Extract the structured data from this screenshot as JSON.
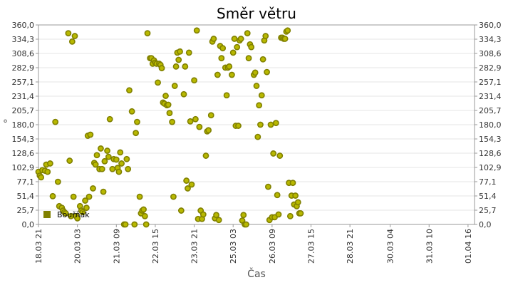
{
  "chart_data": {
    "type": "scatter",
    "title": "Směr větru",
    "xlabel": "Čas",
    "ylabel": "°",
    "ylim": [
      0,
      360
    ],
    "y_ticks": [
      "0,0",
      "25,7",
      "51,4",
      "77,1",
      "102,9",
      "128,6",
      "154,3",
      "180,0",
      "205,7",
      "231,4",
      "257,1",
      "282,9",
      "308,6",
      "334,3",
      "360,0"
    ],
    "x_tick_labels": [
      "18.03 21",
      "20.03 03",
      "21.03 09",
      "22.03 15",
      "23.03 21",
      "25.03 03",
      "26.03 09",
      "27.03 15",
      "28.03 21",
      "30.03 04",
      "31.03 10",
      "01.04 16"
    ],
    "x_ticks_t": [
      0,
      30,
      60,
      90,
      120,
      150,
      180,
      210,
      240,
      271,
      301,
      331
    ],
    "x_range_t": [
      0,
      336
    ],
    "grid": true,
    "legend_position": "bottom-left",
    "marker_color": "#808000",
    "series": [
      {
        "name": "Bouřňák",
        "points": [
          [
            0,
            95
          ],
          [
            1,
            88
          ],
          [
            2,
            85
          ],
          [
            3,
            98
          ],
          [
            5,
            97
          ],
          [
            6,
            108
          ],
          [
            7,
            95
          ],
          [
            9,
            110
          ],
          [
            11,
            51
          ],
          [
            13,
            185
          ],
          [
            15,
            77
          ],
          [
            16,
            33
          ],
          [
            18,
            30
          ],
          [
            19,
            25
          ],
          [
            20,
            22
          ],
          [
            21,
            20
          ],
          [
            23,
            345
          ],
          [
            24,
            115
          ],
          [
            25,
            15
          ],
          [
            26,
            330
          ],
          [
            27,
            50
          ],
          [
            28,
            340
          ],
          [
            29,
            15
          ],
          [
            30,
            11
          ],
          [
            32,
            33
          ],
          [
            33,
            25
          ],
          [
            34,
            22
          ],
          [
            36,
            43
          ],
          [
            37,
            30
          ],
          [
            38,
            160
          ],
          [
            39,
            50
          ],
          [
            40,
            162
          ],
          [
            42,
            65
          ],
          [
            43,
            111
          ],
          [
            44,
            108
          ],
          [
            45,
            125
          ],
          [
            47,
            100
          ],
          [
            48,
            137
          ],
          [
            49,
            100
          ],
          [
            50,
            59
          ],
          [
            51,
            114
          ],
          [
            53,
            133
          ],
          [
            54,
            122
          ],
          [
            55,
            190
          ],
          [
            57,
            100
          ],
          [
            58,
            118
          ],
          [
            60,
            117
          ],
          [
            61,
            102
          ],
          [
            62,
            95
          ],
          [
            63,
            130
          ],
          [
            64,
            110
          ],
          [
            66,
            0
          ],
          [
            67,
            0
          ],
          [
            68,
            118
          ],
          [
            69,
            100
          ],
          [
            70,
            242
          ],
          [
            72,
            204
          ],
          [
            74,
            0
          ],
          [
            75,
            165
          ],
          [
            76,
            185
          ],
          [
            78,
            50
          ],
          [
            79,
            20
          ],
          [
            80,
            25
          ],
          [
            81,
            27
          ],
          [
            82,
            15
          ],
          [
            83,
            0
          ],
          [
            84,
            345
          ],
          [
            86,
            300
          ],
          [
            87,
            300
          ],
          [
            88,
            290
          ],
          [
            89,
            296
          ],
          [
            90,
            292
          ],
          [
            91,
            290
          ],
          [
            92,
            256
          ],
          [
            93,
            290
          ],
          [
            94,
            288
          ],
          [
            95,
            282
          ],
          [
            96,
            220
          ],
          [
            97,
            218
          ],
          [
            98,
            232
          ],
          [
            99,
            215
          ],
          [
            100,
            216
          ],
          [
            101,
            201
          ],
          [
            103,
            185
          ],
          [
            104,
            50
          ],
          [
            105,
            250
          ],
          [
            106,
            285
          ],
          [
            107,
            310
          ],
          [
            108,
            297
          ],
          [
            109,
            312
          ],
          [
            110,
            25
          ],
          [
            112,
            235
          ],
          [
            113,
            285
          ],
          [
            114,
            79
          ],
          [
            115,
            65
          ],
          [
            116,
            310
          ],
          [
            117,
            186
          ],
          [
            118,
            72
          ],
          [
            120,
            260
          ],
          [
            121,
            190
          ],
          [
            122,
            350
          ],
          [
            123,
            10
          ],
          [
            124,
            176
          ],
          [
            125,
            25
          ],
          [
            126,
            10
          ],
          [
            127,
            18
          ],
          [
            129,
            124
          ],
          [
            130,
            168
          ],
          [
            131,
            170
          ],
          [
            133,
            197
          ],
          [
            134,
            330
          ],
          [
            135,
            335
          ],
          [
            136,
            11
          ],
          [
            137,
            17
          ],
          [
            138,
            270
          ],
          [
            139,
            8
          ],
          [
            140,
            322
          ],
          [
            141,
            300
          ],
          [
            142,
            318
          ],
          [
            144,
            283
          ],
          [
            145,
            233
          ],
          [
            146,
            283
          ],
          [
            147,
            285
          ],
          [
            149,
            270
          ],
          [
            150,
            310
          ],
          [
            151,
            335
          ],
          [
            152,
            178
          ],
          [
            153,
            320
          ],
          [
            154,
            178
          ],
          [
            155,
            332
          ],
          [
            156,
            335
          ],
          [
            157,
            7
          ],
          [
            158,
            17
          ],
          [
            159,
            0
          ],
          [
            160,
            0
          ],
          [
            161,
            345
          ],
          [
            162,
            300
          ],
          [
            163,
            325
          ],
          [
            164,
            320
          ],
          [
            166,
            270
          ],
          [
            167,
            274
          ],
          [
            168,
            250
          ],
          [
            169,
            158
          ],
          [
            170,
            215
          ],
          [
            171,
            180
          ],
          [
            172,
            233
          ],
          [
            173,
            298
          ],
          [
            174,
            332
          ],
          [
            175,
            340
          ],
          [
            176,
            275
          ],
          [
            177,
            68
          ],
          [
            178,
            8
          ],
          [
            179,
            180
          ],
          [
            180,
            13
          ],
          [
            181,
            128
          ],
          [
            182,
            13
          ],
          [
            183,
            183
          ],
          [
            184,
            53
          ],
          [
            185,
            18
          ],
          [
            186,
            124
          ],
          [
            187,
            337
          ],
          [
            188,
            337
          ],
          [
            189,
            335
          ],
          [
            190,
            335
          ],
          [
            191,
            348
          ],
          [
            192,
            350
          ],
          [
            193,
            75
          ],
          [
            194,
            15
          ],
          [
            195,
            52
          ],
          [
            196,
            75
          ],
          [
            197,
            36
          ],
          [
            198,
            52
          ],
          [
            199,
            33
          ],
          [
            200,
            40
          ],
          [
            201,
            20
          ],
          [
            202,
            20
          ]
        ]
      }
    ]
  }
}
